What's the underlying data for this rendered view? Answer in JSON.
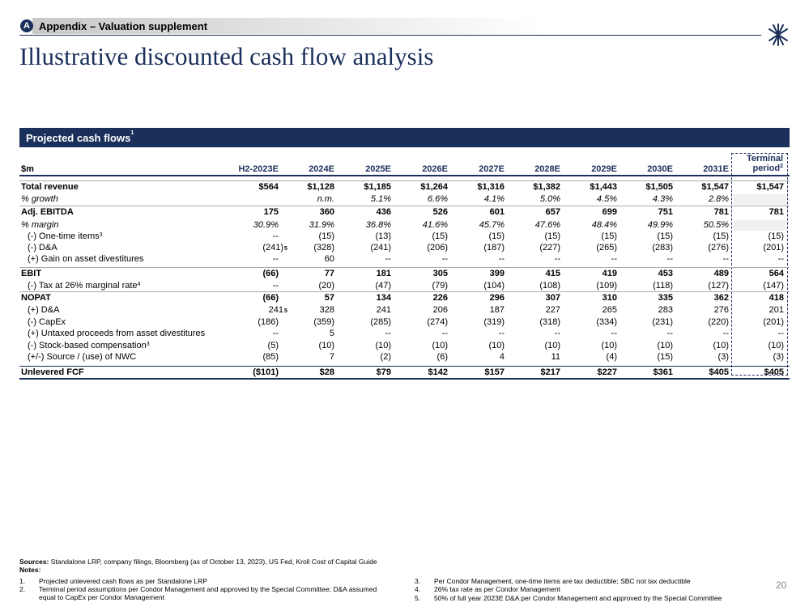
{
  "header": {
    "badge": "A",
    "section": "Appendix – Valuation supplement",
    "title": "Illustrative discounted cash flow analysis"
  },
  "table": {
    "banner": "Projected cash flows",
    "banner_sup": "1",
    "unit": "$m",
    "columns": [
      "H2-2023E",
      "2024E",
      "2025E",
      "2026E",
      "2027E",
      "2028E",
      "2029E",
      "2030E",
      "2031E"
    ],
    "terminal_header": "Terminal period",
    "terminal_header_sup": "2",
    "rows": [
      {
        "label": "Total revenue",
        "style": "bold",
        "cells": [
          "$564",
          "$1,128",
          "$1,185",
          "$1,264",
          "$1,316",
          "$1,382",
          "$1,443",
          "$1,505",
          "$1,547"
        ],
        "terminal": "$1,547"
      },
      {
        "label": "% growth",
        "style": "italic",
        "cells": [
          null,
          "n.m.",
          "5.1%",
          "6.6%",
          "4.1%",
          "5.0%",
          "4.5%",
          "4.3%",
          "2.8%"
        ],
        "terminal": null
      },
      {
        "label": "Adj. EBITDA",
        "style": "bold",
        "cells": [
          "175",
          "360",
          "436",
          "526",
          "601",
          "657",
          "699",
          "751",
          "781"
        ],
        "terminal": "781"
      },
      {
        "label": "% margin",
        "style": "italic",
        "cells": [
          "30.9%",
          "31.9%",
          "36.8%",
          "41.6%",
          "45.7%",
          "47.6%",
          "48.4%",
          "49.9%",
          "50.5%"
        ],
        "terminal": null
      },
      {
        "label": "(-) One-time items",
        "label_sup": "3",
        "style": "indent",
        "cells": [
          "--",
          "(15)",
          "(13)",
          "(15)",
          "(15)",
          "(15)",
          "(15)",
          "(15)",
          "(15)"
        ],
        "terminal": "(15)"
      },
      {
        "label": "(-) D&A",
        "style": "indent",
        "first_sup": "5",
        "cells": [
          "(241)",
          "(328)",
          "(241)",
          "(206)",
          "(187)",
          "(227)",
          "(265)",
          "(283)",
          "(276)"
        ],
        "terminal": "(201)"
      },
      {
        "label": "(+) Gain on asset divestitures",
        "style": "indent",
        "cells": [
          "--",
          "60",
          "--",
          "--",
          "--",
          "--",
          "--",
          "--",
          "--"
        ],
        "terminal": "--"
      },
      {
        "label": "EBIT",
        "style": "bold",
        "cells": [
          "(66)",
          "77",
          "181",
          "305",
          "399",
          "415",
          "419",
          "453",
          "489"
        ],
        "terminal": "564"
      },
      {
        "label": "(-) Tax at 26% marginal rate",
        "label_sup": "4",
        "style": "indent",
        "cells": [
          "--",
          "(20)",
          "(47)",
          "(79)",
          "(104)",
          "(108)",
          "(109)",
          "(118)",
          "(127)"
        ],
        "terminal": "(147)"
      },
      {
        "label": "NOPAT",
        "style": "bold",
        "cells": [
          "(66)",
          "57",
          "134",
          "226",
          "296",
          "307",
          "310",
          "335",
          "362"
        ],
        "terminal": "418"
      },
      {
        "label": "(+) D&A",
        "style": "indent",
        "first_sup": "5",
        "cells": [
          "241",
          "328",
          "241",
          "206",
          "187",
          "227",
          "265",
          "283",
          "276"
        ],
        "terminal": "201"
      },
      {
        "label": "(-) CapEx",
        "style": "indent",
        "cells": [
          "(186)",
          "(359)",
          "(285)",
          "(274)",
          "(319)",
          "(318)",
          "(334)",
          "(231)",
          "(220)"
        ],
        "terminal": "(201)"
      },
      {
        "label": "(+) Untaxed proceeds from asset divestitures",
        "style": "indent",
        "cells": [
          "--",
          "5",
          "--",
          "--",
          "--",
          "--",
          "--",
          "--",
          "--"
        ],
        "terminal": "--"
      },
      {
        "label": "(-) Stock-based compensation",
        "label_sup": "3",
        "style": "indent",
        "cells": [
          "(5)",
          "(10)",
          "(10)",
          "(10)",
          "(10)",
          "(10)",
          "(10)",
          "(10)",
          "(10)"
        ],
        "terminal": "(10)"
      },
      {
        "label": "(+/-) Source / (use) of NWC",
        "style": "indent",
        "cells": [
          "(85)",
          "7",
          "(2)",
          "(6)",
          "4",
          "11",
          "(4)",
          "(15)",
          "(3)"
        ],
        "terminal": "(3)"
      },
      {
        "label": "Unlevered FCF",
        "style": "total",
        "cells": [
          "($101)",
          "$28",
          "$79",
          "$142",
          "$157",
          "$217",
          "$227",
          "$361",
          "$405"
        ],
        "terminal": "$405"
      }
    ]
  },
  "footer": {
    "sources_label": "Sources:",
    "sources": "Standalone LRP, company filings, Bloomberg (as of October 13, 2023), US Fed, Kroll Cost of Capital Guide",
    "notes_label": "Notes:",
    "notes": [
      {
        "num": "1.",
        "text": "Projected unlevered cash flows as per Standalone LRP"
      },
      {
        "num": "2.",
        "text": "Terminal period assumptions per Condor Management and approved by the Special Committee; D&A assumed equal to CapEx per Condor Management"
      },
      {
        "num": "3.",
        "text": "Per Condor Management, one-time items are tax deductible; SBC not tax deductible"
      },
      {
        "num": "4.",
        "text": "26% tax rate as per Condor Management"
      },
      {
        "num": "5.",
        "text": "50% of full year 2023E D&A per Condor Management and approved by the Special Committee"
      }
    ],
    "page": "20"
  }
}
